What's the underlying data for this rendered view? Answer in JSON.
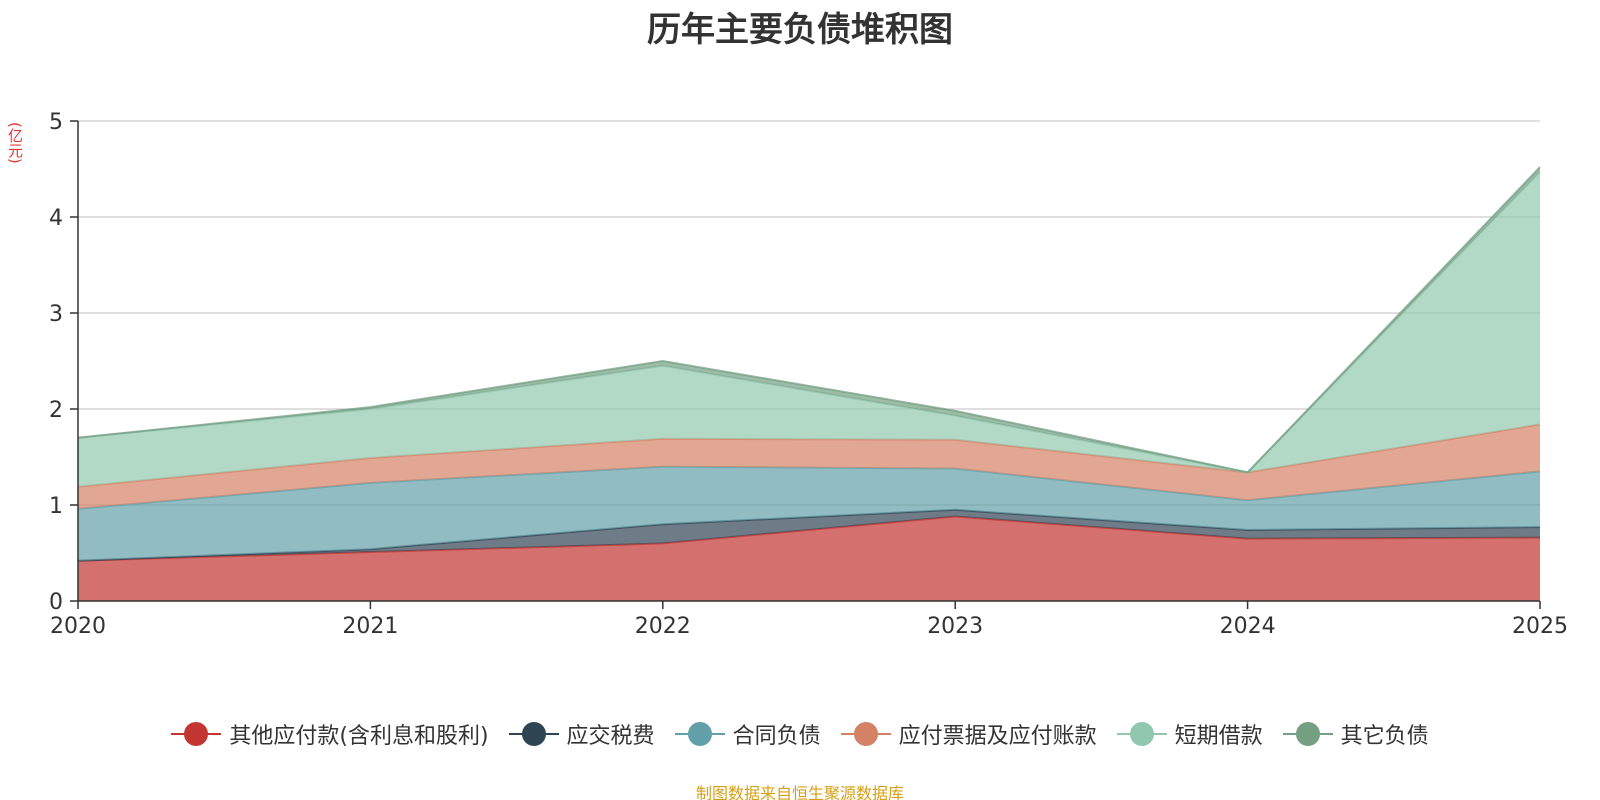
{
  "title": "历年主要负债堆积图",
  "unit": "(亿元)",
  "source": "制图数据来自恒生聚源数据库",
  "chart_data": {
    "type": "area",
    "stacked": true,
    "title": "历年主要负债堆积图",
    "ylabel": "(亿元)",
    "x": [
      "2020",
      "2021",
      "2022",
      "2023",
      "2024",
      "2025"
    ],
    "ylim": [
      0,
      5
    ],
    "yticks": [
      "0",
      "1",
      "2",
      "3",
      "4",
      "5"
    ],
    "grid": true,
    "legend_position": "bottom",
    "series": [
      {
        "name": "其他应付款(含利息和股利)",
        "color": "#c23531",
        "values": [
          0.42,
          0.51,
          0.6,
          0.88,
          0.65,
          0.66
        ]
      },
      {
        "name": "应交税费",
        "color": "#2f4554",
        "values": [
          0.0,
          0.03,
          0.2,
          0.07,
          0.09,
          0.11
        ]
      },
      {
        "name": "合同负债",
        "color": "#61a0a8",
        "values": [
          0.54,
          0.69,
          0.6,
          0.43,
          0.31,
          0.58
        ]
      },
      {
        "name": "应付票据及应付账款",
        "color": "#d48265",
        "values": [
          0.23,
          0.26,
          0.29,
          0.3,
          0.29,
          0.49
        ]
      },
      {
        "name": "短期借款",
        "color": "#91c7ae",
        "values": [
          0.51,
          0.51,
          0.76,
          0.25,
          0.0,
          2.63
        ]
      },
      {
        "name": "其它负债",
        "color": "#749f83",
        "values": [
          0.0,
          0.02,
          0.05,
          0.05,
          0.0,
          0.05
        ]
      }
    ]
  }
}
